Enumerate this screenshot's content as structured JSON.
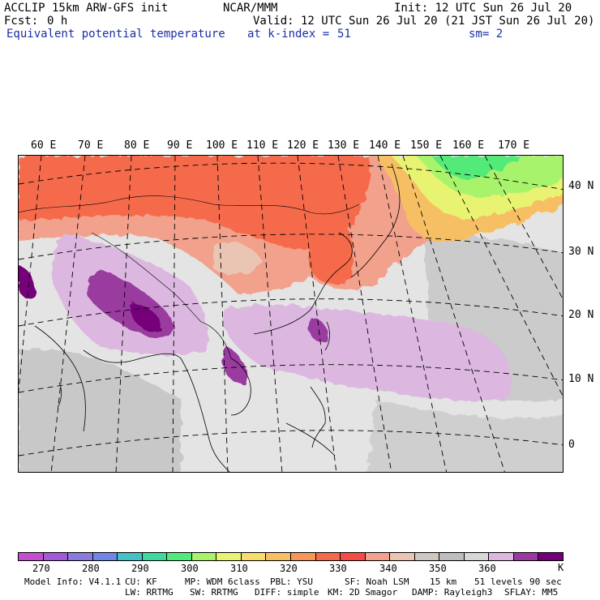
{
  "header": {
    "model": "ACCLIP 15km ARW-GFS init",
    "center": "NCAR/MMM",
    "init": "Init: 12 UTC Sun 26 Jul 20",
    "fcst_label": "Fcst:",
    "fcst_value": "0 h",
    "valid": "Valid: 12 UTC Sun 26 Jul 20 (21 JST Sun 26 Jul 20)",
    "field": "Equivalent potential temperature",
    "level": "at k-index =",
    "level_value": "51",
    "smooth": "sm= 2"
  },
  "map": {
    "lon_labels": [
      "60 E",
      "70 E",
      "80 E",
      "90 E",
      "100 E",
      "110 E",
      "120 E",
      "130 E",
      "140 E",
      "150 E",
      "160 E",
      "170 E"
    ],
    "lat_labels": [
      "40 N",
      "30 N",
      "20 N",
      "10 N",
      "0"
    ]
  },
  "colorbar": {
    "colors": [
      "#c34fd0",
      "#a35ad6",
      "#8a7bdd",
      "#6f86e6",
      "#43c1c6",
      "#3fd99d",
      "#52ea7a",
      "#a8f36c",
      "#e8f372",
      "#f6dd6c",
      "#f7bf63",
      "#f79658",
      "#f56a4b",
      "#f54b46",
      "#f2a18c",
      "#eac5b3",
      "#cfc8c2",
      "#bdbdbd",
      "#d7d7d7",
      "#dcb8e0",
      "#9a3aa0",
      "#740079"
    ],
    "labels": [
      "270",
      "280",
      "290",
      "300",
      "310",
      "320",
      "330",
      "340",
      "350",
      "360"
    ],
    "unit": "K"
  },
  "footer": {
    "line1": [
      "Model Info: V4.1.1",
      "CU: KF",
      "MP: WDM 6class",
      "PBL: YSU",
      "SF: Noah LSM",
      "15 km",
      "51 levels",
      "90 sec"
    ],
    "line2": [
      "LW: RRTMG",
      "SW: RRTMG",
      "DIFF: simple",
      "KM: 2D Smagor",
      "DAMP: Rayleigh3",
      "SFLAY: MM5"
    ]
  }
}
